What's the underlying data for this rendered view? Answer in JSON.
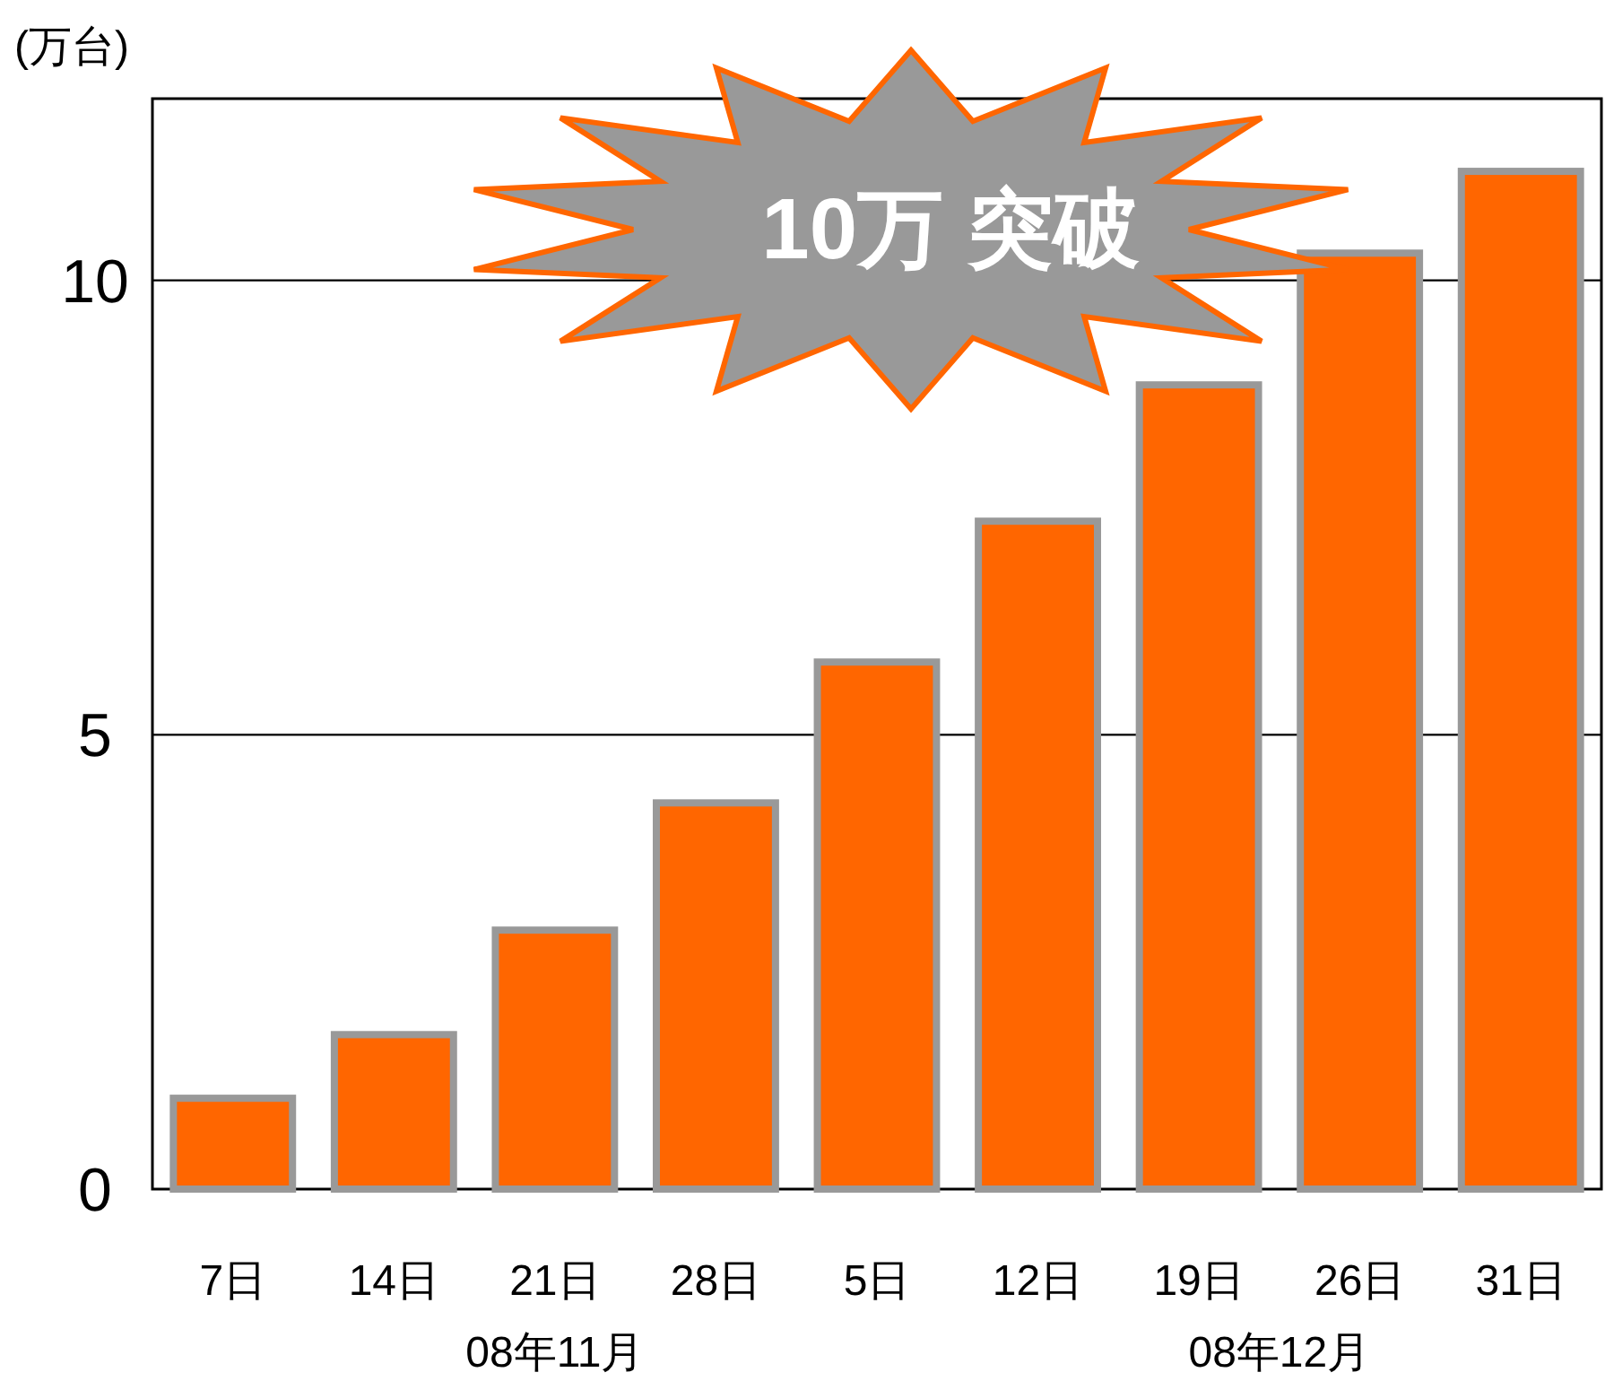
{
  "chart_data": {
    "type": "bar",
    "ylabel": "(万台)",
    "categories": [
      "7日",
      "14日",
      "21日",
      "28日",
      "5日",
      "12日",
      "19日",
      "26日",
      "31日"
    ],
    "values": [
      1.0,
      1.7,
      2.85,
      4.25,
      5.8,
      7.35,
      8.85,
      10.3,
      11.2
    ],
    "color": "#ff6600",
    "ylim": [
      0,
      12
    ],
    "yticks": [
      0,
      5,
      10
    ],
    "grid": "y",
    "annotations": [
      "08年11月",
      "08年12月",
      "10万 突破"
    ]
  }
}
